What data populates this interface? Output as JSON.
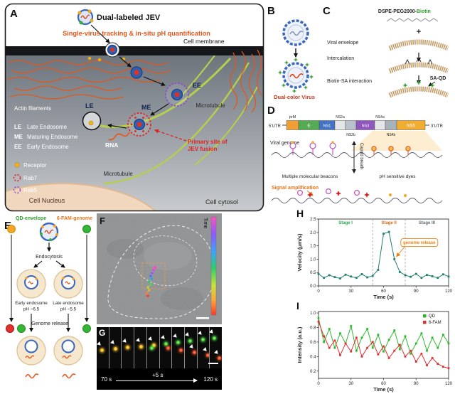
{
  "panelA": {
    "label": "A",
    "title": "Dual-labeled JEV",
    "subtitle": "Single-virus tracking & in-situ pH quantification",
    "cell_membrane": "Cell membrane",
    "actin_filaments": "Actin filaments",
    "endosome_legend": {
      "le_abbr": "LE",
      "le_name": "Late Endosome",
      "me_abbr": "ME",
      "me_name": "Maturing Endosome",
      "ee_abbr": "EE",
      "ee_name": "Early Endosome"
    },
    "marker_le": "LE",
    "marker_me": "ME",
    "marker_ee": "EE",
    "rna": "RNA",
    "fusion_line1": "Primary site of",
    "fusion_line2": "JEV fusion",
    "microtubule_right": "Microtubule",
    "microtubule_bottom": "Microtubule",
    "receptor": "Receptor",
    "rab7": "Rab7",
    "rab5": "Rab5",
    "cell_nucleus": "Cell Nucleus",
    "cell_cytosol": "Cell cytosol"
  },
  "panelB": {
    "label": "B",
    "caption": "Dual-color Virus"
  },
  "panelC": {
    "label": "C",
    "title_prefix": "DSPE-PEG2000-",
    "title_highlight": "Biotin",
    "plus": "+",
    "viral_envelope": "Viral envelope",
    "intercalation": "Intercalation",
    "biotin_sa": "Biotin-SA interaction",
    "sa_qd": "SA-QD"
  },
  "panelD": {
    "label": "D",
    "utr5": "5'UTR",
    "utr3": "3'UTR",
    "genes": [
      "prM",
      "E",
      "NS1",
      "NS2a",
      "NS2b",
      "NS3",
      "NS4a",
      "NS4b",
      "NS5"
    ],
    "viral_genome": "Viral genome",
    "beacons": "Multiple molecular beacons",
    "capsid_breath": "Capsid breath",
    "ph_dyes": "pH sensitive dyes",
    "signal_amplification": "Signal amplification"
  },
  "panelE": {
    "label": "E",
    "qd_envelope": "QD-envelope",
    "fam_genome": "6-FAM-genome",
    "endocytosis": "Endocytosis",
    "early_line1": "Early endosome",
    "early_line2": "pH ~6.5",
    "late_line1": "Late endosome",
    "late_line2": "pH ~5.5",
    "genome_release": "Genome release"
  },
  "panelF": {
    "label": "F",
    "time_label": "Time"
  },
  "panelG": {
    "label": "G",
    "t_start": "70 s",
    "t_step": "+5 s",
    "t_end": "120 s"
  },
  "panelH": {
    "label": "H"
  },
  "panelI": {
    "label": "I"
  },
  "colors": {
    "accent_orange": "#e8551a",
    "qd_green": "#2eb82e",
    "fam_red": "#e03131",
    "velocity_teal": "#1f7f72"
  },
  "chart_data": [
    {
      "id": "H",
      "type": "line",
      "title": "",
      "xlabel": "Time (s)",
      "ylabel": "Velocity (μm/s)",
      "xlim": [
        0,
        120
      ],
      "ylim": [
        0,
        2.5
      ],
      "xticks": [
        0,
        30,
        60,
        90,
        120
      ],
      "yticks": [
        0.0,
        0.5,
        1.0,
        1.5,
        2.0,
        2.5
      ],
      "grid": false,
      "stages": [
        {
          "label": "Stage I",
          "end": 50,
          "color": "#2aa84a"
        },
        {
          "label": "Stage II",
          "end": 80,
          "color": "#e8641a"
        },
        {
          "label": "Stage III",
          "end": 120,
          "color": "#5f7070"
        }
      ],
      "annotation": {
        "text": "genome release",
        "x": 93,
        "y": 1.62,
        "color": "#e8821a",
        "arrow_to": {
          "x": 72,
          "y": 1.1
        }
      },
      "series": [
        {
          "name": "velocity",
          "color": "#1f7f72",
          "x": [
            0,
            5,
            10,
            15,
            20,
            25,
            30,
            35,
            40,
            45,
            50,
            55,
            60,
            65,
            70,
            75,
            80,
            85,
            90,
            95,
            100,
            105,
            110,
            115,
            120
          ],
          "y": [
            0.45,
            0.3,
            0.4,
            0.33,
            0.28,
            0.42,
            0.35,
            0.3,
            0.44,
            0.32,
            0.38,
            0.6,
            1.95,
            2.02,
            1.0,
            0.52,
            0.4,
            0.34,
            0.45,
            0.3,
            0.41,
            0.36,
            0.3,
            0.43,
            0.35
          ]
        }
      ]
    },
    {
      "id": "I",
      "type": "line",
      "title": "",
      "xlabel": "Time (s)",
      "ylabel": "Intensity (a.u.)",
      "xlim": [
        0,
        120
      ],
      "ylim": [
        0.1,
        1.02
      ],
      "xticks": [
        0,
        30,
        60,
        90,
        120
      ],
      "yticks": [
        0.2,
        0.4,
        0.6,
        0.8,
        1.0
      ],
      "grid": false,
      "legend": true,
      "legend_position": "top-right",
      "series": [
        {
          "name": "QD",
          "color": "#2eb82e",
          "x": [
            0,
            5,
            10,
            15,
            20,
            25,
            30,
            35,
            40,
            45,
            50,
            55,
            60,
            65,
            70,
            75,
            80,
            85,
            90,
            95,
            100,
            105,
            110,
            115,
            120
          ],
          "y": [
            0.93,
            0.6,
            0.78,
            0.52,
            0.72,
            0.58,
            0.82,
            0.48,
            0.66,
            0.78,
            0.52,
            0.7,
            0.47,
            0.63,
            0.76,
            0.5,
            0.68,
            0.44,
            0.58,
            0.72,
            0.48,
            0.66,
            0.52,
            0.7,
            0.58
          ]
        },
        {
          "name": "6-FAM",
          "color": "#e03131",
          "x": [
            0,
            5,
            10,
            15,
            20,
            25,
            30,
            35,
            40,
            45,
            50,
            55,
            60,
            65,
            70,
            75,
            80,
            85,
            90,
            95,
            100,
            105,
            110,
            115,
            120
          ],
          "y": [
            0.88,
            0.68,
            0.52,
            0.62,
            0.42,
            0.58,
            0.47,
            0.66,
            0.4,
            0.52,
            0.6,
            0.43,
            0.54,
            0.38,
            0.48,
            0.56,
            0.4,
            0.48,
            0.33,
            0.44,
            0.28,
            0.38,
            0.3,
            0.26,
            0.24
          ]
        }
      ]
    }
  ]
}
